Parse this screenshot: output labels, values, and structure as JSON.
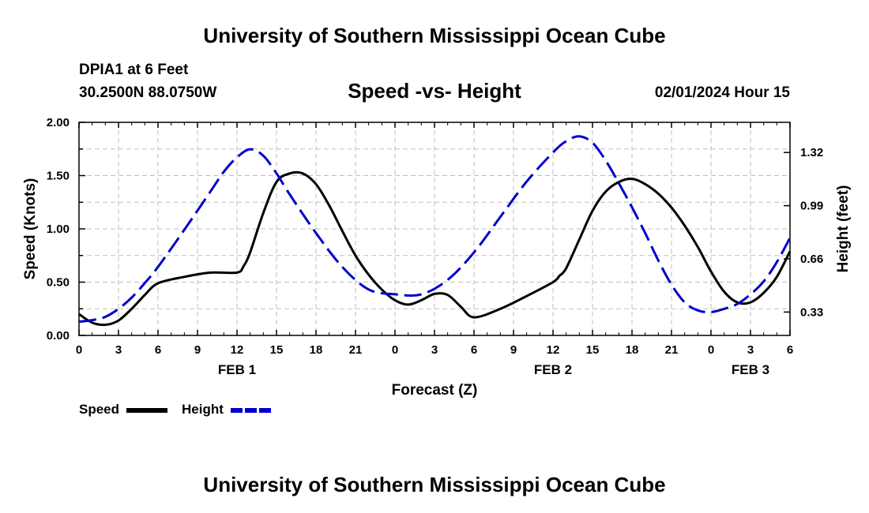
{
  "header": {
    "main_title": "University of Southern Mississippi Ocean Cube",
    "station": "DPIA1 at 6 Feet",
    "coords": "30.2500N  88.0750W",
    "subtitle": "Speed -vs- Height",
    "datetime": "02/01/2024 Hour 15"
  },
  "footer": {
    "title": "University of Southern Mississippi Ocean Cube"
  },
  "legend": {
    "speed_label": "Speed",
    "height_label": "Height"
  },
  "colors": {
    "speed": "#000000",
    "height": "#0000cc",
    "grid": "#bdbdbd"
  },
  "chart_data": {
    "type": "line",
    "title": "Speed -vs- Height",
    "xlabel": "Forecast (Z)",
    "ylabel": "Speed (Knots)",
    "y2label": "Height (feet)",
    "xlim": [
      0,
      54
    ],
    "ylim": [
      0,
      2.0
    ],
    "y2lim": [
      0.185,
      1.507
    ],
    "x_ticks": [
      0,
      3,
      6,
      9,
      12,
      15,
      18,
      21,
      24,
      27,
      30,
      33,
      36,
      39,
      42,
      45,
      48,
      51,
      54
    ],
    "x_tick_labels": [
      "0",
      "3",
      "6",
      "9",
      "12",
      "15",
      "18",
      "21",
      "0",
      "3",
      "6",
      "9",
      "12",
      "15",
      "18",
      "21",
      "0",
      "3",
      "6"
    ],
    "y_ticks": [
      0,
      0.5,
      1.0,
      1.5,
      2.0
    ],
    "y_tick_labels": [
      "0.00",
      "0.50",
      "1.00",
      "1.50",
      "2.00"
    ],
    "y2_ticks": [
      0.33,
      0.66,
      0.99,
      1.32
    ],
    "y2_tick_labels": [
      "0.33",
      "0.66",
      "0.99",
      "1.32"
    ],
    "day_labels": [
      {
        "x": 12,
        "label": "FEB 1"
      },
      {
        "x": 36,
        "label": "FEB 2"
      },
      {
        "x": 51,
        "label": "FEB 3"
      }
    ],
    "series": [
      {
        "name": "Speed",
        "axis": "left",
        "style": "solid",
        "x": [
          0,
          1,
          2,
          3,
          4,
          5,
          6,
          8,
          10,
          12,
          12.5,
          13,
          14,
          15,
          16,
          17,
          18,
          19,
          20,
          21,
          22,
          23,
          24,
          25,
          26,
          27,
          28,
          29,
          30,
          32,
          34,
          36,
          36.5,
          37,
          38,
          39,
          40,
          41,
          42,
          43,
          44,
          45,
          46,
          47,
          48,
          49,
          50,
          51,
          52,
          53,
          54
        ],
        "values": [
          0.2,
          0.12,
          0.1,
          0.14,
          0.25,
          0.38,
          0.49,
          0.55,
          0.59,
          0.59,
          0.65,
          0.78,
          1.15,
          1.44,
          1.52,
          1.52,
          1.42,
          1.22,
          0.98,
          0.75,
          0.57,
          0.43,
          0.33,
          0.29,
          0.33,
          0.39,
          0.38,
          0.27,
          0.17,
          0.25,
          0.37,
          0.5,
          0.56,
          0.63,
          0.9,
          1.17,
          1.35,
          1.44,
          1.47,
          1.42,
          1.33,
          1.2,
          1.03,
          0.83,
          0.6,
          0.41,
          0.31,
          0.31,
          0.4,
          0.55,
          0.79
        ]
      },
      {
        "name": "Height",
        "axis": "right",
        "style": "dashed",
        "x": [
          0,
          1,
          2,
          3,
          4,
          5,
          6,
          8,
          10,
          11,
          12,
          13,
          14,
          15,
          16,
          18,
          20,
          22,
          24,
          26,
          28,
          30,
          32,
          34,
          36,
          37,
          38,
          39,
          40,
          41,
          42,
          43,
          44,
          45,
          46,
          47,
          48,
          49,
          50,
          51,
          52,
          53,
          54
        ],
        "values": [
          0.27,
          0.28,
          0.3,
          0.35,
          0.42,
          0.51,
          0.61,
          0.84,
          1.08,
          1.2,
          1.29,
          1.34,
          1.3,
          1.19,
          1.06,
          0.82,
          0.61,
          0.47,
          0.44,
          0.44,
          0.53,
          0.7,
          0.92,
          1.14,
          1.32,
          1.39,
          1.42,
          1.38,
          1.27,
          1.13,
          0.98,
          0.82,
          0.65,
          0.5,
          0.39,
          0.34,
          0.33,
          0.35,
          0.38,
          0.44,
          0.52,
          0.64,
          0.79
        ]
      }
    ]
  }
}
